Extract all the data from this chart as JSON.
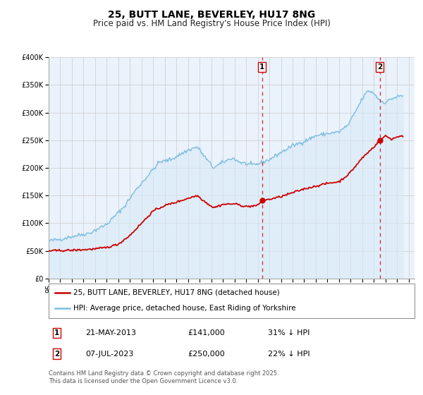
{
  "title": "25, BUTT LANE, BEVERLEY, HU17 8NG",
  "subtitle": "Price paid vs. HM Land Registry's House Price Index (HPI)",
  "ylim": [
    0,
    400000
  ],
  "yticks": [
    0,
    50000,
    100000,
    150000,
    200000,
    250000,
    300000,
    350000,
    400000
  ],
  "ytick_labels": [
    "£0",
    "£50K",
    "£100K",
    "£150K",
    "£200K",
    "£250K",
    "£300K",
    "£350K",
    "£400K"
  ],
  "hpi_color": "#7bbde0",
  "hpi_fill_color": "#d6eaf8",
  "price_color": "#cc0000",
  "vline_color": "#cc0000",
  "grid_color": "#cccccc",
  "background_color": "#ffffff",
  "plot_bg_color": "#eaf2fb",
  "legend_label_price": "25, BUTT LANE, BEVERLEY, HU17 8NG (detached house)",
  "legend_label_hpi": "HPI: Average price, detached house, East Riding of Yorkshire",
  "annotation1_label": "1",
  "annotation1_date": "21-MAY-2013",
  "annotation1_price": "£141,000",
  "annotation1_pct": "31% ↓ HPI",
  "annotation1_year": 2013.38,
  "annotation1_value": 141000,
  "annotation2_label": "2",
  "annotation2_date": "07-JUL-2023",
  "annotation2_price": "£250,000",
  "annotation2_pct": "22% ↓ HPI",
  "annotation2_year": 2023.52,
  "annotation2_value": 250000,
  "footer": "Contains HM Land Registry data © Crown copyright and database right 2025.\nThis data is licensed under the Open Government Licence v3.0.",
  "title_fontsize": 10,
  "subtitle_fontsize": 8.5,
  "tick_fontsize": 7,
  "legend_fontsize": 7.5,
  "footer_fontsize": 6
}
